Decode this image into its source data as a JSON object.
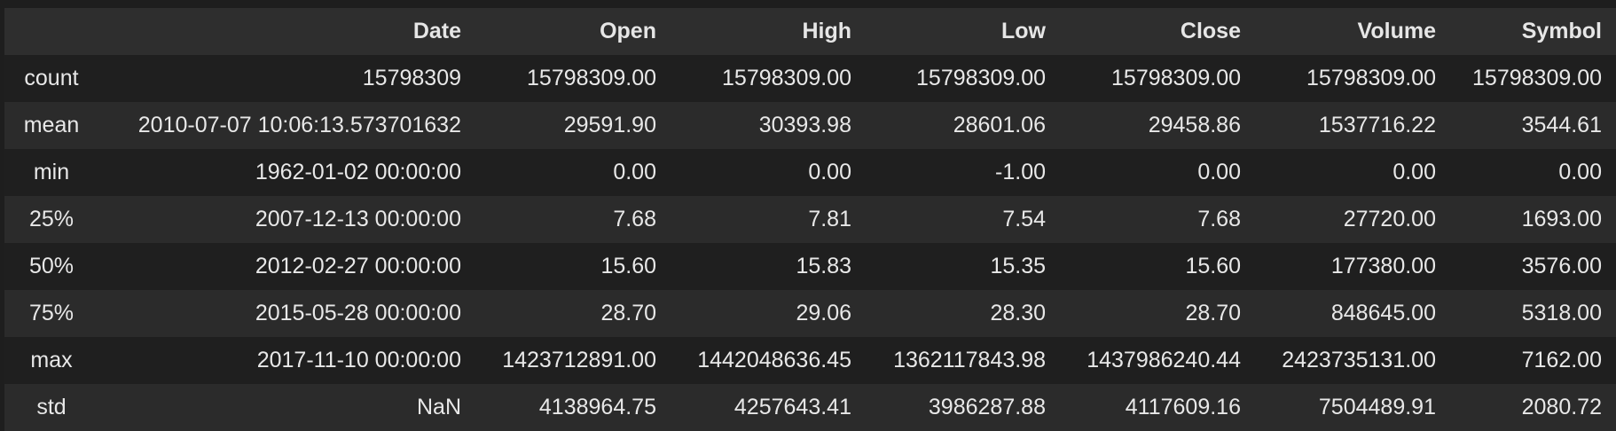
{
  "table": {
    "index_header": "",
    "columns": [
      "Date",
      "Open",
      "High",
      "Low",
      "Close",
      "Volume",
      "Symbol"
    ],
    "rows": [
      {
        "index": "count",
        "cells": [
          "15798309",
          "15798309.00",
          "15798309.00",
          "15798309.00",
          "15798309.00",
          "15798309.00",
          "15798309.00"
        ]
      },
      {
        "index": "mean",
        "cells": [
          "2010-07-07 10:06:13.573701632",
          "29591.90",
          "30393.98",
          "28601.06",
          "29458.86",
          "1537716.22",
          "3544.61"
        ]
      },
      {
        "index": "min",
        "cells": [
          "1962-01-02 00:00:00",
          "0.00",
          "0.00",
          "-1.00",
          "0.00",
          "0.00",
          "0.00"
        ]
      },
      {
        "index": "25%",
        "cells": [
          "2007-12-13 00:00:00",
          "7.68",
          "7.81",
          "7.54",
          "7.68",
          "27720.00",
          "1693.00"
        ]
      },
      {
        "index": "50%",
        "cells": [
          "2012-02-27 00:00:00",
          "15.60",
          "15.83",
          "15.35",
          "15.60",
          "177380.00",
          "3576.00"
        ]
      },
      {
        "index": "75%",
        "cells": [
          "2015-05-28 00:00:00",
          "28.70",
          "29.06",
          "28.30",
          "28.70",
          "848645.00",
          "5318.00"
        ]
      },
      {
        "index": "max",
        "cells": [
          "2017-11-10 00:00:00",
          "1423712891.00",
          "1442048636.45",
          "1362117843.98",
          "1437986240.44",
          "2423735131.00",
          "7162.00"
        ]
      },
      {
        "index": "std",
        "cells": [
          "NaN",
          "4138964.75",
          "4257643.41",
          "3986287.88",
          "4117609.16",
          "7504489.91",
          "2080.72"
        ]
      }
    ]
  },
  "colors": {
    "background": "#1e1e1e",
    "header_background": "#2e2e2e",
    "row_odd": "#1f1f1f",
    "row_even": "#2b2b2b",
    "text": "#e8e8e8"
  }
}
